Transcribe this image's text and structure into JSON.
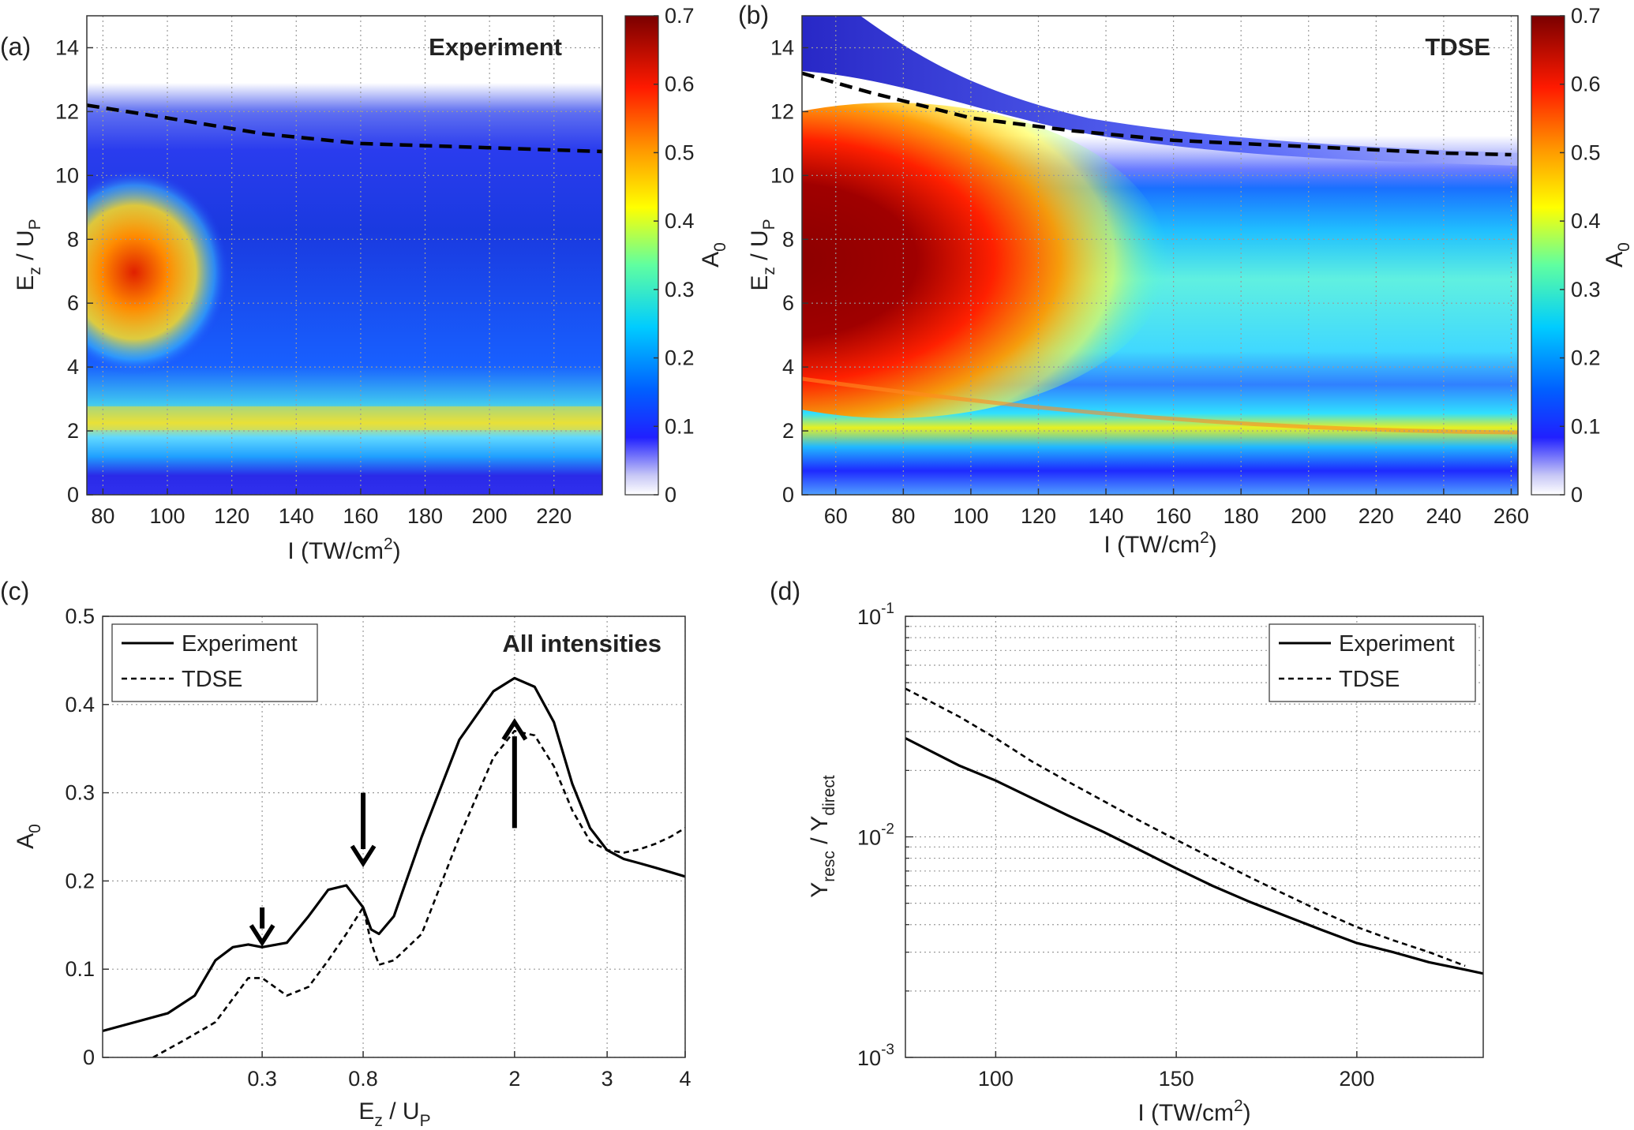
{
  "chart_data": [
    {
      "id": "a",
      "type": "heatmap",
      "panel_label": "(a)",
      "title": "Experiment",
      "xlabel": "I (TW/cm",
      "xlabel_sup": "2",
      "xlabel_end": ")",
      "ylabel_base": "E",
      "ylabel_sub": "z",
      "ylabel_mid": " / U",
      "ylabel_sub2": "P",
      "xlim": [
        75,
        235
      ],
      "ylim": [
        0,
        15
      ],
      "xticks": [
        "80",
        "100",
        "120",
        "140",
        "160",
        "180",
        "200",
        "220"
      ],
      "yticks": [
        "0",
        "2",
        "4",
        "6",
        "8",
        "10",
        "12",
        "14"
      ],
      "colorbar": {
        "label_base": "A",
        "label_sub": "0",
        "range": [
          0,
          0.7
        ],
        "ticks": [
          "0",
          "0.1",
          "0.2",
          "0.3",
          "0.4",
          "0.5",
          "0.6",
          "0.7"
        ]
      },
      "cutoff_curve": {
        "x": [
          75,
          100,
          130,
          160,
          190,
          220,
          235
        ],
        "y": [
          12.2,
          11.8,
          11.3,
          11.0,
          10.9,
          10.8,
          10.75
        ]
      },
      "regions": [
        {
          "name": "high-A0 lobe",
          "I_range": [
            76,
            110
          ],
          "Ez_range": [
            4.5,
            9.5
          ],
          "A0_peak": 0.6
        },
        {
          "name": "band near 2 Up",
          "I_range": [
            75,
            235
          ],
          "Ez_range": [
            1.6,
            2.6
          ],
          "A0_peak": 0.42
        }
      ]
    },
    {
      "id": "b",
      "type": "heatmap",
      "panel_label": "(b)",
      "title": "TDSE",
      "xlabel": "I (TW/cm",
      "xlabel_sup": "2",
      "xlabel_end": ")",
      "ylabel_base": "E",
      "ylabel_sub": "z",
      "ylabel_mid": " / U",
      "ylabel_sub2": "P",
      "xlim": [
        50,
        262
      ],
      "ylim": [
        0,
        15
      ],
      "xticks": [
        "60",
        "80",
        "100",
        "120",
        "140",
        "160",
        "180",
        "200",
        "220",
        "240",
        "260"
      ],
      "yticks": [
        "0",
        "2",
        "4",
        "6",
        "8",
        "10",
        "12",
        "14"
      ],
      "colorbar": {
        "label_base": "A",
        "label_sub": "0",
        "range": [
          0,
          0.7
        ],
        "ticks": [
          "0",
          "0.1",
          "0.2",
          "0.3",
          "0.4",
          "0.5",
          "0.6",
          "0.7"
        ]
      },
      "cutoff_curve": {
        "x": [
          50,
          70,
          100,
          130,
          160,
          200,
          240,
          260
        ],
        "y": [
          13.2,
          12.6,
          11.8,
          11.4,
          11.1,
          10.9,
          10.7,
          10.65
        ]
      },
      "regions": [
        {
          "name": "high-A0 lobe",
          "I_range": [
            50,
            170
          ],
          "Ez_range": [
            5.0,
            11.0
          ],
          "A0_peak": 0.7
        },
        {
          "name": "band near 2 Up",
          "I_range": [
            50,
            262
          ],
          "Ez_range": [
            1.7,
            2.5
          ],
          "A0_peak": 0.45
        }
      ]
    },
    {
      "id": "c",
      "type": "line",
      "panel_label": "(c)",
      "title": "All intensities",
      "xlabel_base": "E",
      "xlabel_sub": "z",
      "xlabel_mid": " / U",
      "xlabel_sub2": "P",
      "ylabel_base": "A",
      "ylabel_sub": "0",
      "xscale": "sqrt",
      "xlim": [
        0,
        4
      ],
      "ylim": [
        0,
        0.5
      ],
      "xticks": [
        "0.3",
        "0.8",
        "2",
        "3",
        "4"
      ],
      "yticks": [
        "0",
        "0.1",
        "0.2",
        "0.3",
        "0.4",
        "0.5"
      ],
      "legend_position": "top-left",
      "series": [
        {
          "name": "Experiment",
          "style": "solid",
          "x": [
            0,
            0.05,
            0.1,
            0.15,
            0.2,
            0.25,
            0.3,
            0.4,
            0.5,
            0.6,
            0.7,
            0.8,
            0.85,
            0.9,
            1.0,
            1.2,
            1.5,
            1.8,
            2.0,
            2.2,
            2.4,
            2.6,
            2.8,
            3.0,
            3.2,
            3.4,
            3.6,
            3.8,
            4.0
          ],
          "y": [
            0.03,
            0.05,
            0.07,
            0.11,
            0.125,
            0.128,
            0.125,
            0.13,
            0.16,
            0.19,
            0.195,
            0.17,
            0.145,
            0.14,
            0.16,
            0.25,
            0.36,
            0.415,
            0.43,
            0.42,
            0.38,
            0.31,
            0.26,
            0.235,
            0.225,
            0.22,
            0.215,
            0.21,
            0.205
          ]
        },
        {
          "name": "TDSE",
          "style": "dashed",
          "x": [
            0.03,
            0.08,
            0.15,
            0.25,
            0.3,
            0.4,
            0.5,
            0.6,
            0.7,
            0.8,
            0.85,
            0.9,
            1.0,
            1.2,
            1.5,
            1.8,
            2.0,
            2.2,
            2.4,
            2.6,
            2.8,
            3.0,
            3.2,
            3.4,
            3.6,
            3.8,
            4.0
          ],
          "y": [
            0.0,
            0.02,
            0.04,
            0.09,
            0.09,
            0.07,
            0.08,
            0.11,
            0.14,
            0.17,
            0.13,
            0.105,
            0.11,
            0.14,
            0.25,
            0.34,
            0.37,
            0.365,
            0.33,
            0.28,
            0.245,
            0.235,
            0.232,
            0.236,
            0.242,
            0.25,
            0.26
          ]
        }
      ],
      "arrows": [
        {
          "x": 0.3,
          "y_from": 0.17,
          "y_to": 0.13,
          "direction": "down"
        },
        {
          "x": 0.8,
          "y_from": 0.3,
          "y_to": 0.22,
          "direction": "down"
        },
        {
          "x": 2.0,
          "y_from": 0.26,
          "y_to": 0.38,
          "direction": "up"
        }
      ]
    },
    {
      "id": "d",
      "type": "line",
      "panel_label": "(d)",
      "xlabel": "I (TW/cm",
      "xlabel_sup": "2",
      "xlabel_end": ")",
      "ylabel_base": "Y",
      "ylabel_sub": "resc",
      "ylabel_mid": " / Y",
      "ylabel_sub2": "direct",
      "xlim": [
        75,
        235
      ],
      "ylim": [
        0.001,
        0.1
      ],
      "yscale": "log",
      "xticks": [
        "100",
        "150",
        "200"
      ],
      "yticks_base": "10",
      "yticks_exp": [
        "-3",
        "-2",
        "-1"
      ],
      "legend_position": "top-right",
      "series": [
        {
          "name": "Experiment",
          "style": "solid",
          "x": [
            75,
            90,
            100,
            110,
            120,
            130,
            140,
            150,
            160,
            170,
            180,
            190,
            200,
            210,
            220,
            230,
            235
          ],
          "y": [
            0.028,
            0.021,
            0.018,
            0.015,
            0.0125,
            0.0105,
            0.0087,
            0.0072,
            0.006,
            0.0051,
            0.0044,
            0.0038,
            0.0033,
            0.003,
            0.0027,
            0.0025,
            0.0024
          ]
        },
        {
          "name": "TDSE",
          "style": "dashed",
          "x": [
            75,
            90,
            100,
            110,
            120,
            130,
            140,
            150,
            160,
            170,
            180,
            190,
            200,
            210,
            220,
            230
          ],
          "y": [
            0.047,
            0.035,
            0.028,
            0.022,
            0.0178,
            0.0145,
            0.0118,
            0.0097,
            0.008,
            0.0066,
            0.0055,
            0.0046,
            0.0039,
            0.0034,
            0.003,
            0.0026
          ]
        }
      ]
    }
  ]
}
